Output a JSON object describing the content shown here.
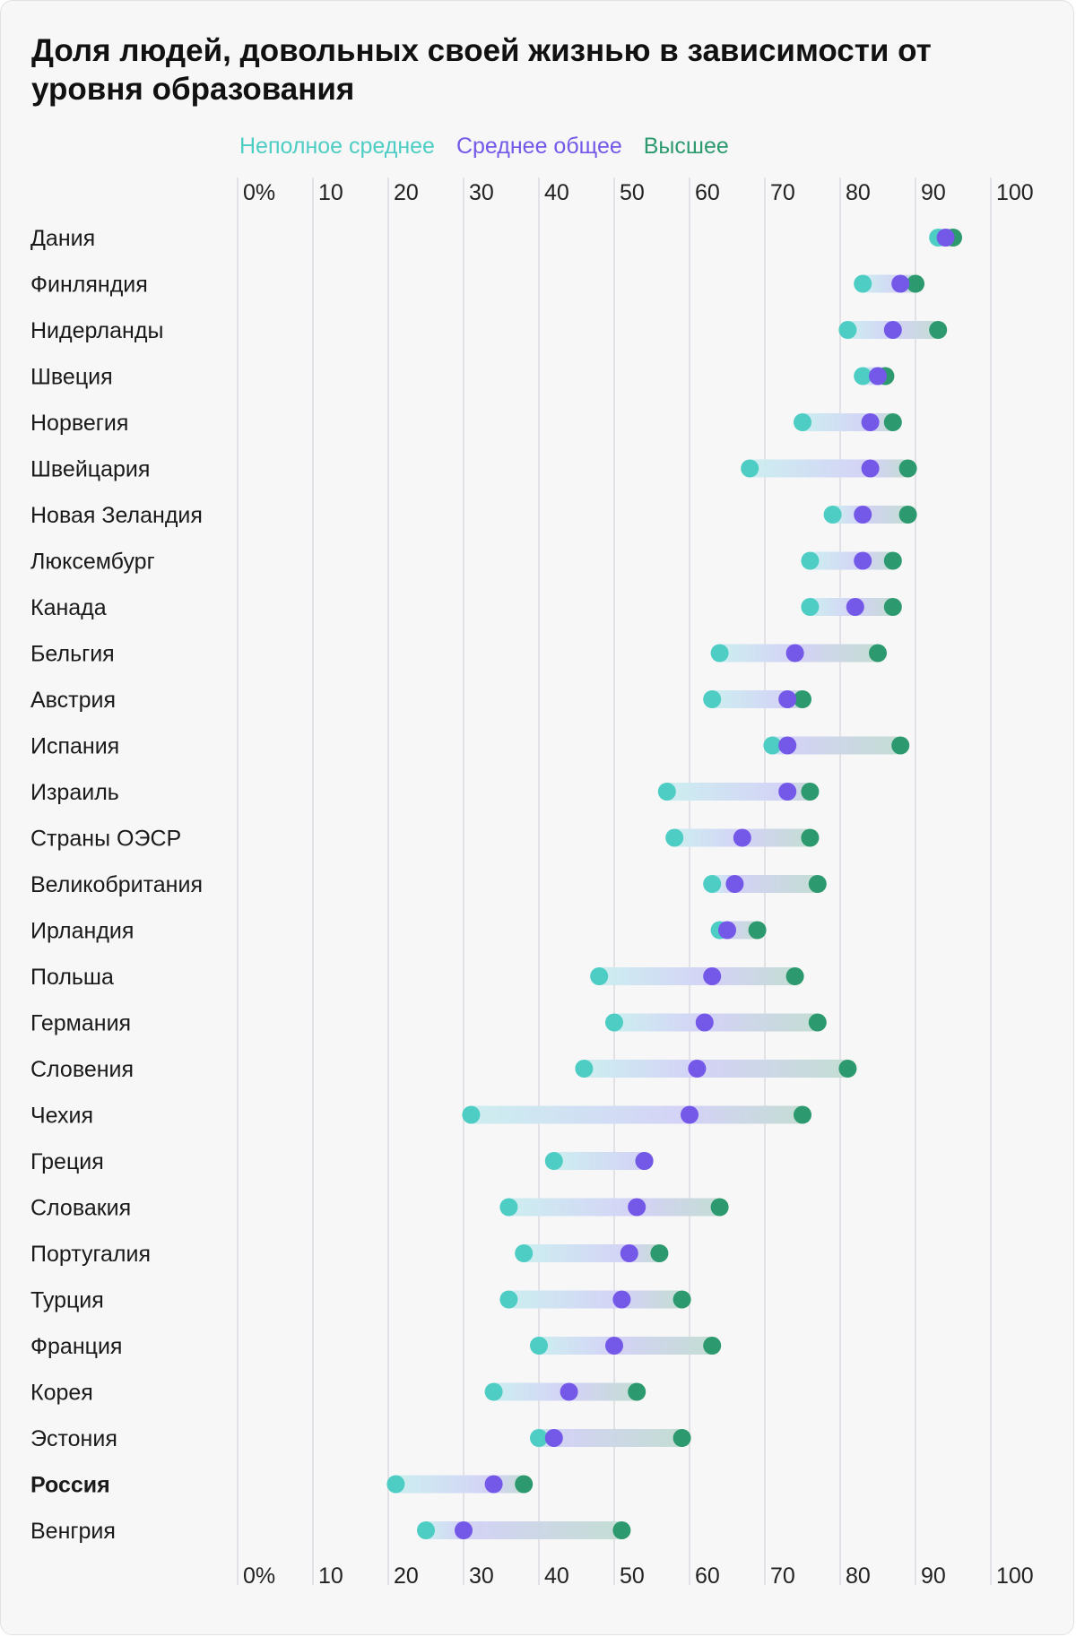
{
  "title": "Доля людей, довольных своей жизнью в зависимости от уровня образования",
  "colors": {
    "lower": "#4ecdc4",
    "middle": "#7458e8",
    "higher": "#2c9a6e",
    "grid": "#dcdce0",
    "text": "#222222"
  },
  "chart_data": {
    "type": "dumbbell",
    "title": "Доля людей, довольных своей жизнью в зависимости от уровня образования",
    "xlim": [
      0,
      100
    ],
    "x_ticks": [
      "0%",
      "10",
      "20",
      "30",
      "40",
      "50",
      "60",
      "70",
      "80",
      "90",
      "100"
    ],
    "grid": true,
    "legend_position": "top",
    "series": [
      {
        "key": "lower",
        "name": "Неполное среднее"
      },
      {
        "key": "middle",
        "name": "Среднее общее"
      },
      {
        "key": "higher",
        "name": "Высшее"
      }
    ],
    "rows": [
      {
        "country": "Дания",
        "lower": 93,
        "middle": 94,
        "higher": 95,
        "highlight": false
      },
      {
        "country": "Финляндия",
        "lower": 83,
        "middle": 88,
        "higher": 90,
        "highlight": false
      },
      {
        "country": "Нидерланды",
        "lower": 81,
        "middle": 87,
        "higher": 93,
        "highlight": false
      },
      {
        "country": "Швеция",
        "lower": 83,
        "middle": 85,
        "higher": 86,
        "highlight": false
      },
      {
        "country": "Норвегия",
        "lower": 75,
        "middle": 84,
        "higher": 87,
        "highlight": false
      },
      {
        "country": "Швейцария",
        "lower": 68,
        "middle": 84,
        "higher": 89,
        "highlight": false
      },
      {
        "country": "Новая Зеландия",
        "lower": 79,
        "middle": 83,
        "higher": 89,
        "highlight": false
      },
      {
        "country": "Люксембург",
        "lower": 76,
        "middle": 83,
        "higher": 87,
        "highlight": false
      },
      {
        "country": "Канада",
        "lower": 76,
        "middle": 82,
        "higher": 87,
        "highlight": false
      },
      {
        "country": "Бельгия",
        "lower": 64,
        "middle": 74,
        "higher": 85,
        "highlight": false
      },
      {
        "country": "Австрия",
        "lower": 63,
        "middle": 73,
        "higher": 75,
        "highlight": false
      },
      {
        "country": "Испания",
        "lower": 71,
        "middle": 73,
        "higher": 88,
        "highlight": false
      },
      {
        "country": "Израиль",
        "lower": 57,
        "middle": 73,
        "higher": 76,
        "highlight": false
      },
      {
        "country": "Страны ОЭСР",
        "lower": 58,
        "middle": 67,
        "higher": 76,
        "highlight": false
      },
      {
        "country": "Великобритания",
        "lower": 63,
        "middle": 66,
        "higher": 77,
        "highlight": false
      },
      {
        "country": "Ирландия",
        "lower": 64,
        "middle": 65,
        "higher": 69,
        "highlight": false
      },
      {
        "country": "Польша",
        "lower": 48,
        "middle": 63,
        "higher": 74,
        "highlight": false
      },
      {
        "country": "Германия",
        "lower": 50,
        "middle": 62,
        "higher": 77,
        "highlight": false
      },
      {
        "country": "Словения",
        "lower": 46,
        "middle": 61,
        "higher": 81,
        "highlight": false
      },
      {
        "country": "Чехия",
        "lower": 31,
        "middle": 60,
        "higher": 75,
        "highlight": false
      },
      {
        "country": "Греция",
        "lower": 42,
        "middle": 54,
        "higher": 54,
        "highlight": false
      },
      {
        "country": "Словакия",
        "lower": 36,
        "middle": 53,
        "higher": 64,
        "highlight": false
      },
      {
        "country": "Португалия",
        "lower": 38,
        "middle": 52,
        "higher": 56,
        "highlight": false
      },
      {
        "country": "Турция",
        "lower": 36,
        "middle": 51,
        "higher": 59,
        "highlight": false
      },
      {
        "country": "Франция",
        "lower": 40,
        "middle": 50,
        "higher": 63,
        "highlight": false
      },
      {
        "country": "Корея",
        "lower": 34,
        "middle": 44,
        "higher": 53,
        "highlight": false
      },
      {
        "country": "Эстония",
        "lower": 40,
        "middle": 42,
        "higher": 59,
        "highlight": false
      },
      {
        "country": "Россия",
        "lower": 21,
        "middle": 34,
        "higher": 38,
        "highlight": true
      },
      {
        "country": "Венгрия",
        "lower": 25,
        "middle": 30,
        "higher": 51,
        "highlight": false
      }
    ]
  }
}
